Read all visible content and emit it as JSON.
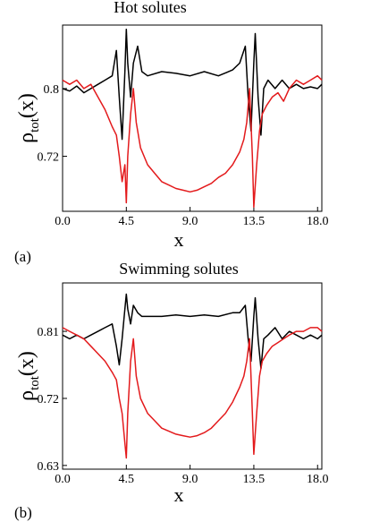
{
  "chart_data": [
    {
      "type": "line",
      "panel_label": "(a)",
      "title": "Hot solutes",
      "xlabel": "x",
      "ylabel": {
        "main": "ρ",
        "sub": "tot",
        "args": "(x)"
      },
      "xlim": [
        0,
        18.3
      ],
      "ylim": [
        0.655,
        0.875
      ],
      "xticks": [
        0,
        4.5,
        9,
        13.5,
        18
      ],
      "xtick_labels": [
        "0.0",
        "4.5",
        "9.0",
        "13.5",
        "18.0"
      ],
      "yticks": [
        0.72,
        0.8
      ],
      "ytick_labels": [
        "0.72",
        "0.8"
      ],
      "series": [
        {
          "color": "#000000",
          "x": [
            0,
            0.5,
            1,
            1.5,
            2,
            2.5,
            3,
            3.5,
            3.8,
            4.0,
            4.2,
            4.4,
            4.5,
            4.6,
            4.8,
            5.0,
            5.3,
            5.6,
            6,
            7,
            8,
            9,
            10,
            11,
            12,
            12.5,
            12.9,
            13.1,
            13.3,
            13.5,
            13.6,
            13.8,
            14.0,
            14.2,
            14.5,
            15,
            15.5,
            16,
            16.5,
            17,
            17.5,
            18,
            18.3
          ],
          "y": [
            0.8,
            0.797,
            0.803,
            0.795,
            0.8,
            0.805,
            0.81,
            0.815,
            0.845,
            0.79,
            0.74,
            0.82,
            0.87,
            0.83,
            0.79,
            0.83,
            0.85,
            0.82,
            0.815,
            0.82,
            0.818,
            0.815,
            0.82,
            0.815,
            0.822,
            0.83,
            0.85,
            0.79,
            0.75,
            0.83,
            0.865,
            0.79,
            0.745,
            0.8,
            0.81,
            0.8,
            0.81,
            0.8,
            0.805,
            0.8,
            0.802,
            0.8,
            0.805
          ]
        },
        {
          "color": "#e31a1c",
          "x": [
            0,
            0.5,
            1,
            1.5,
            2,
            2.5,
            3,
            3.5,
            3.8,
            4.0,
            4.2,
            4.4,
            4.5,
            4.6,
            4.8,
            5.0,
            5.2,
            5.5,
            6,
            6.5,
            7,
            7.5,
            8,
            8.5,
            9,
            9.5,
            10,
            10.5,
            11,
            11.5,
            12,
            12.5,
            12.8,
            13.0,
            13.2,
            13.4,
            13.5,
            13.7,
            13.9,
            14.1,
            14.4,
            14.8,
            15.2,
            15.6,
            16,
            16.5,
            17,
            17.5,
            18,
            18.3
          ],
          "y": [
            0.81,
            0.805,
            0.81,
            0.8,
            0.805,
            0.79,
            0.775,
            0.755,
            0.745,
            0.72,
            0.69,
            0.71,
            0.665,
            0.72,
            0.77,
            0.8,
            0.76,
            0.73,
            0.71,
            0.7,
            0.69,
            0.686,
            0.682,
            0.68,
            0.678,
            0.68,
            0.684,
            0.688,
            0.695,
            0.7,
            0.71,
            0.725,
            0.74,
            0.76,
            0.8,
            0.72,
            0.66,
            0.71,
            0.75,
            0.77,
            0.78,
            0.79,
            0.795,
            0.785,
            0.8,
            0.81,
            0.805,
            0.81,
            0.815,
            0.81
          ]
        }
      ]
    },
    {
      "type": "line",
      "panel_label": "(b)",
      "title": "Swimming solutes",
      "xlabel": "x",
      "ylabel": {
        "main": "ρ",
        "sub": "tot",
        "args": "(x)"
      },
      "xlim": [
        0,
        18.3
      ],
      "ylim": [
        0.625,
        0.875
      ],
      "xticks": [
        0,
        4.5,
        9,
        13.5,
        18
      ],
      "xtick_labels": [
        "0.0",
        "4.5",
        "9.0",
        "13.5",
        "18.0"
      ],
      "yticks": [
        0.63,
        0.72,
        0.81
      ],
      "ytick_labels": [
        "0.63",
        "0.72",
        "0.81"
      ],
      "series": [
        {
          "color": "#000000",
          "x": [
            0,
            0.5,
            1,
            1.5,
            2,
            2.5,
            3,
            3.5,
            3.8,
            4.0,
            4.2,
            4.4,
            4.5,
            4.6,
            4.8,
            5.0,
            5.3,
            5.6,
            6,
            7,
            8,
            9,
            10,
            11,
            12,
            12.5,
            12.9,
            13.1,
            13.3,
            13.5,
            13.6,
            13.8,
            14.0,
            14.2,
            14.5,
            15,
            15.5,
            16,
            16.5,
            17,
            17.5,
            18,
            18.3
          ],
          "y": [
            0.805,
            0.8,
            0.805,
            0.8,
            0.805,
            0.81,
            0.815,
            0.82,
            0.79,
            0.765,
            0.8,
            0.84,
            0.86,
            0.84,
            0.82,
            0.845,
            0.835,
            0.83,
            0.83,
            0.83,
            0.832,
            0.83,
            0.832,
            0.83,
            0.835,
            0.835,
            0.845,
            0.8,
            0.77,
            0.83,
            0.855,
            0.8,
            0.76,
            0.8,
            0.805,
            0.815,
            0.8,
            0.81,
            0.805,
            0.8,
            0.805,
            0.8,
            0.805
          ]
        },
        {
          "color": "#e31a1c",
          "x": [
            0,
            0.5,
            1,
            1.5,
            2,
            2.5,
            3,
            3.5,
            3.8,
            4.0,
            4.2,
            4.4,
            4.5,
            4.6,
            4.8,
            5.0,
            5.2,
            5.5,
            6,
            6.5,
            7,
            7.5,
            8,
            8.5,
            9,
            9.5,
            10,
            10.5,
            11,
            11.5,
            12,
            12.5,
            12.8,
            13.0,
            13.2,
            13.4,
            13.5,
            13.7,
            13.9,
            14.1,
            14.4,
            14.8,
            15.2,
            15.6,
            16,
            16.5,
            17,
            17.5,
            18,
            18.3
          ],
          "y": [
            0.815,
            0.81,
            0.805,
            0.8,
            0.79,
            0.78,
            0.77,
            0.755,
            0.745,
            0.72,
            0.7,
            0.66,
            0.64,
            0.7,
            0.77,
            0.8,
            0.75,
            0.72,
            0.7,
            0.69,
            0.68,
            0.676,
            0.672,
            0.67,
            0.668,
            0.67,
            0.674,
            0.68,
            0.69,
            0.7,
            0.715,
            0.735,
            0.75,
            0.77,
            0.8,
            0.7,
            0.645,
            0.7,
            0.75,
            0.77,
            0.78,
            0.79,
            0.795,
            0.8,
            0.805,
            0.81,
            0.81,
            0.815,
            0.815,
            0.81
          ]
        }
      ]
    }
  ]
}
